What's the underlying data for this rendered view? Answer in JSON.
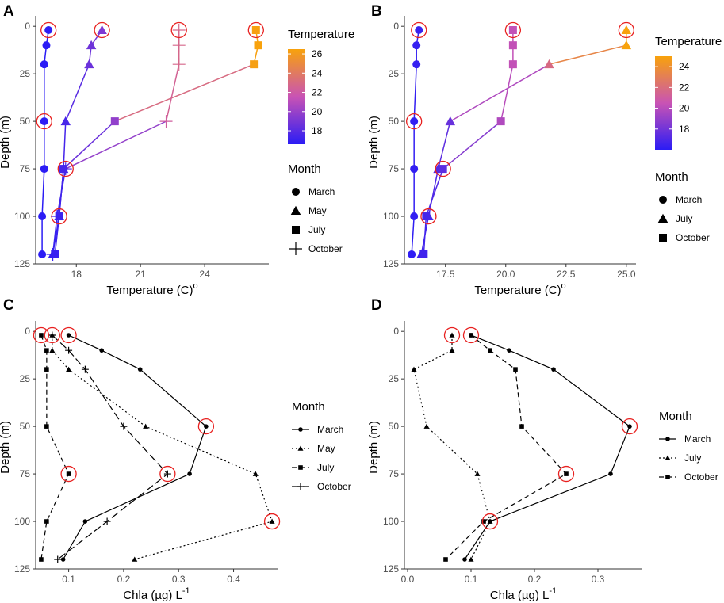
{
  "chart_data": [
    {
      "panel": "A",
      "type": "scatter",
      "xlabel_text": "Temperature (C)",
      "xlabel_sup": "o",
      "ylabel": "Depth (m)",
      "xlim": [
        16.1,
        27.0
      ],
      "ylim": [
        -3,
        125
      ],
      "xticks": [
        18,
        21,
        24
      ],
      "yticks": [
        0,
        25,
        50,
        75,
        100,
        125
      ],
      "colorbar": {
        "title": "Temperature",
        "min": 16.6,
        "max": 26.5,
        "ticks": [
          18,
          20,
          22,
          24,
          26
        ]
      },
      "legend": {
        "title": "Month",
        "entries": [
          {
            "label": "March",
            "shape": "circle"
          },
          {
            "label": "May",
            "shape": "triangle"
          },
          {
            "label": "July",
            "shape": "square"
          },
          {
            "label": "October",
            "shape": "plus"
          }
        ]
      },
      "series": [
        {
          "name": "March",
          "shape": "circle",
          "x": [
            16.7,
            16.6,
            16.5,
            16.5,
            16.5,
            16.4,
            16.4
          ],
          "y": [
            2,
            10,
            20,
            50,
            75,
            100,
            120
          ]
        },
        {
          "name": "May",
          "shape": "triangle",
          "x": [
            19.2,
            18.7,
            18.6,
            17.5,
            17.4,
            17.2,
            16.9
          ],
          "y": [
            2,
            10,
            20,
            50,
            75,
            100,
            120
          ]
        },
        {
          "name": "July",
          "shape": "square",
          "x": [
            26.4,
            26.5,
            26.3,
            19.8,
            17.4,
            17.2,
            17.0
          ],
          "y": [
            2,
            10,
            20,
            50,
            75,
            100,
            120
          ]
        },
        {
          "name": "October",
          "shape": "plus",
          "x": [
            22.8,
            22.8,
            22.8,
            22.2,
            17.5,
            17.1,
            16.9
          ],
          "y": [
            2,
            10,
            20,
            50,
            75,
            100,
            120
          ]
        }
      ],
      "highlighted": [
        {
          "x": 16.7,
          "y": 2
        },
        {
          "x": 19.2,
          "y": 2
        },
        {
          "x": 22.8,
          "y": 2
        },
        {
          "x": 26.4,
          "y": 2
        },
        {
          "x": 16.5,
          "y": 50
        },
        {
          "x": 17.5,
          "y": 75
        },
        {
          "x": 17.2,
          "y": 100
        }
      ]
    },
    {
      "panel": "B",
      "type": "scatter",
      "xlabel_text": "Temperature (C)",
      "xlabel_sup": "o",
      "ylabel": "Depth (m)",
      "xlim": [
        15.8,
        25.4
      ],
      "ylim": [
        -3,
        125
      ],
      "xticks": [
        17.5,
        20.0,
        22.5,
        25.0
      ],
      "xtick_labels": [
        "17.5",
        "20.0",
        "22.5",
        "25.0"
      ],
      "yticks": [
        0,
        25,
        50,
        75,
        100,
        125
      ],
      "colorbar": {
        "title": "Temperature",
        "min": 16.0,
        "max": 25.0,
        "ticks": [
          18,
          20,
          22,
          24
        ]
      },
      "legend": {
        "title": "Month",
        "entries": [
          {
            "label": "March",
            "shape": "circle"
          },
          {
            "label": "July",
            "shape": "triangle"
          },
          {
            "label": "October",
            "shape": "square"
          }
        ]
      },
      "series": [
        {
          "name": "March",
          "shape": "circle",
          "x": [
            16.4,
            16.3,
            16.3,
            16.2,
            16.2,
            16.2,
            16.1
          ],
          "y": [
            2,
            10,
            20,
            50,
            75,
            100,
            120
          ]
        },
        {
          "name": "July",
          "shape": "triangle",
          "x": [
            25.0,
            25.0,
            21.8,
            17.7,
            17.2,
            16.8,
            16.5
          ],
          "y": [
            2,
            10,
            20,
            50,
            75,
            100,
            120
          ]
        },
        {
          "name": "October",
          "shape": "square",
          "x": [
            20.3,
            20.3,
            20.3,
            19.8,
            17.4,
            16.7,
            16.6
          ],
          "y": [
            2,
            10,
            20,
            50,
            75,
            100,
            120
          ]
        }
      ],
      "highlighted": [
        {
          "x": 16.4,
          "y": 2
        },
        {
          "x": 20.3,
          "y": 2
        },
        {
          "x": 25.0,
          "y": 2
        },
        {
          "x": 16.2,
          "y": 50
        },
        {
          "x": 17.4,
          "y": 75
        },
        {
          "x": 16.8,
          "y": 100
        }
      ]
    },
    {
      "panel": "C",
      "type": "line",
      "xlabel_text": "Chla (µg) L",
      "xlabel_sup": "-1",
      "ylabel": "Depth (m)",
      "xlim": [
        0.04,
        0.48
      ],
      "ylim": [
        -3,
        125
      ],
      "xticks": [
        0.1,
        0.2,
        0.3,
        0.4
      ],
      "xtick_labels": [
        "0.1",
        "0.2",
        "0.3",
        "0.4"
      ],
      "yticks": [
        0,
        25,
        50,
        75,
        100,
        125
      ],
      "legend": {
        "title": "Month",
        "entries": [
          {
            "label": "March",
            "shape": "circle",
            "dash": "solid"
          },
          {
            "label": "May",
            "shape": "triangle",
            "dash": "dotted"
          },
          {
            "label": "July",
            "shape": "square",
            "dash": "dashed"
          },
          {
            "label": "October",
            "shape": "plus",
            "dash": "longdash"
          }
        ]
      },
      "series": [
        {
          "name": "March",
          "shape": "circle",
          "dash": "solid",
          "x": [
            0.1,
            0.16,
            0.23,
            0.35,
            0.32,
            0.13,
            0.09
          ],
          "y": [
            2,
            10,
            20,
            50,
            75,
            100,
            120
          ]
        },
        {
          "name": "May",
          "shape": "triangle",
          "dash": "dotted",
          "x": [
            0.07,
            0.07,
            0.1,
            0.24,
            0.44,
            0.47,
            0.22
          ],
          "y": [
            2,
            10,
            20,
            50,
            75,
            100,
            120
          ]
        },
        {
          "name": "July",
          "shape": "square",
          "dash": "dashed",
          "x": [
            0.05,
            0.06,
            0.06,
            0.06,
            0.1,
            0.06,
            0.05
          ],
          "y": [
            2,
            10,
            20,
            50,
            75,
            100,
            120
          ]
        },
        {
          "name": "October",
          "shape": "plus",
          "dash": "longdash",
          "x": [
            0.07,
            0.1,
            0.13,
            0.2,
            0.28,
            0.17,
            0.08
          ],
          "y": [
            2,
            10,
            20,
            50,
            75,
            100,
            120
          ]
        }
      ],
      "highlighted": [
        {
          "x": 0.05,
          "y": 2
        },
        {
          "x": 0.07,
          "y": 2
        },
        {
          "x": 0.1,
          "y": 2
        },
        {
          "x": 0.35,
          "y": 50
        },
        {
          "x": 0.1,
          "y": 75
        },
        {
          "x": 0.28,
          "y": 75
        },
        {
          "x": 0.47,
          "y": 100
        }
      ]
    },
    {
      "panel": "D",
      "type": "line",
      "xlabel_text": "Chla (µg) L",
      "xlabel_sup": "-1",
      "ylabel": "Depth (m)",
      "xlim": [
        -0.005,
        0.37
      ],
      "ylim": [
        -3,
        125
      ],
      "xticks": [
        0.0,
        0.1,
        0.2,
        0.3
      ],
      "xtick_labels": [
        "0.0",
        "0.1",
        "0.2",
        "0.3"
      ],
      "yticks": [
        0,
        25,
        50,
        75,
        100,
        125
      ],
      "legend": {
        "title": "Month",
        "entries": [
          {
            "label": "March",
            "shape": "circle",
            "dash": "solid"
          },
          {
            "label": "July",
            "shape": "triangle",
            "dash": "dotted"
          },
          {
            "label": "October",
            "shape": "square",
            "dash": "dashed"
          }
        ]
      },
      "series": [
        {
          "name": "March",
          "shape": "circle",
          "dash": "solid",
          "x": [
            0.1,
            0.16,
            0.23,
            0.35,
            0.32,
            0.13,
            0.09
          ],
          "y": [
            2,
            10,
            20,
            50,
            75,
            100,
            120
          ]
        },
        {
          "name": "July",
          "shape": "triangle",
          "dash": "dotted",
          "x": [
            0.07,
            0.07,
            0.01,
            0.03,
            0.11,
            0.13,
            0.1
          ],
          "y": [
            2,
            10,
            20,
            50,
            75,
            100,
            120
          ]
        },
        {
          "name": "October",
          "shape": "square",
          "dash": "dashed",
          "x": [
            0.1,
            0.13,
            0.17,
            0.18,
            0.25,
            0.12,
            0.06
          ],
          "y": [
            2,
            10,
            20,
            50,
            75,
            100,
            120
          ]
        }
      ],
      "highlighted": [
        {
          "x": 0.07,
          "y": 2
        },
        {
          "x": 0.1,
          "y": 2
        },
        {
          "x": 0.35,
          "y": 50
        },
        {
          "x": 0.25,
          "y": 75
        },
        {
          "x": 0.13,
          "y": 100
        }
      ]
    }
  ],
  "colors": {
    "highlight": "#e8201f",
    "axis": "#333333",
    "line": "#000000",
    "gradient_low": "#2b1cf5",
    "gradient_mid": "#c953b4",
    "gradient_high": "#f8a20c"
  }
}
